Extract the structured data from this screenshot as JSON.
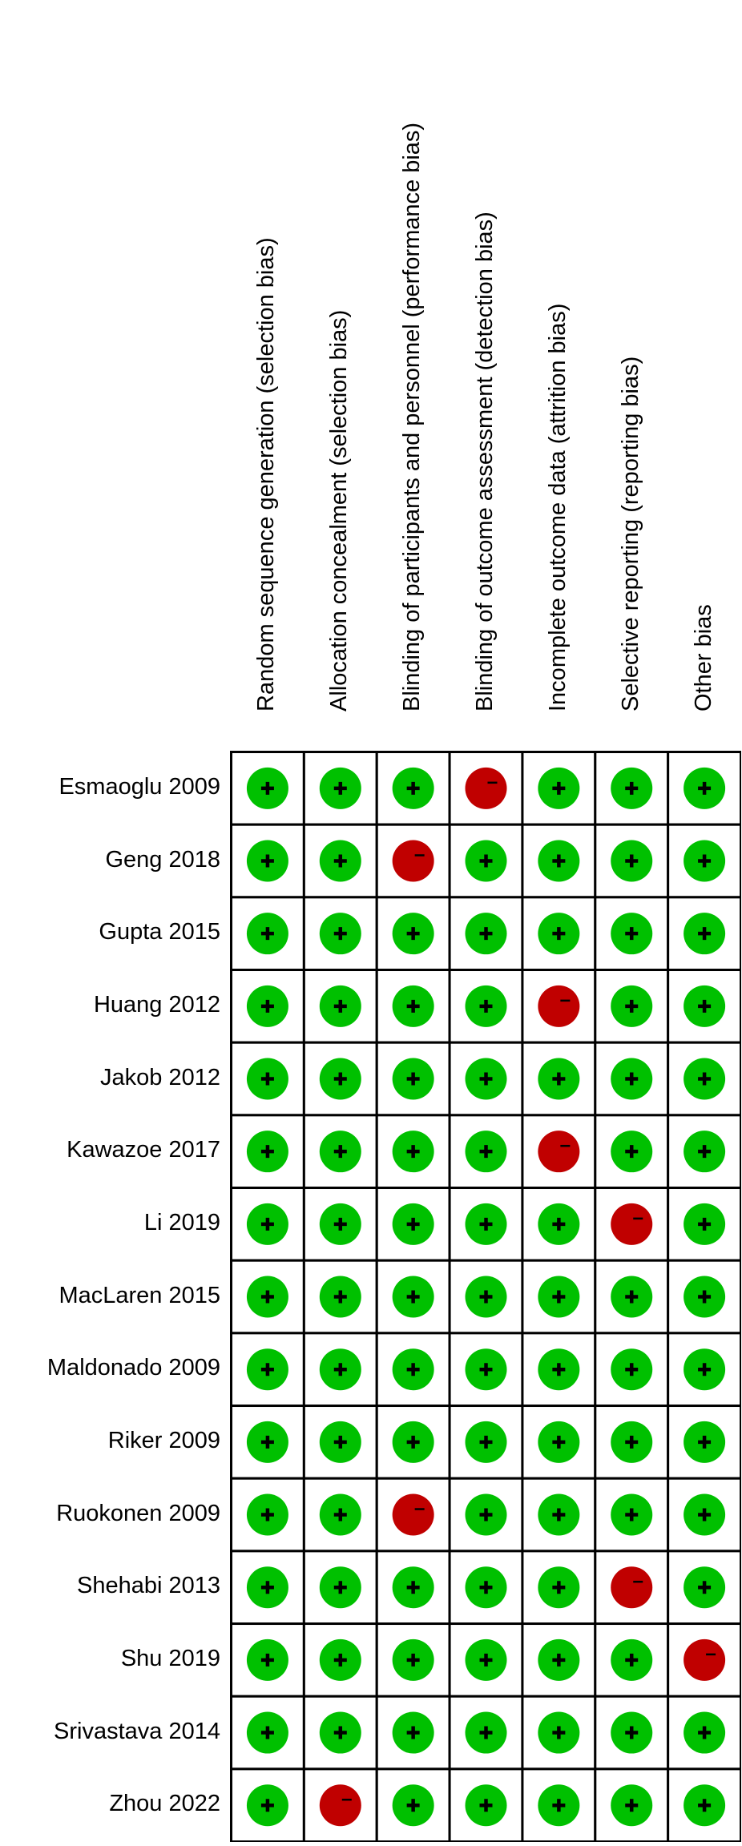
{
  "chart_data": {
    "type": "table",
    "title": "",
    "columns": [
      "Random sequence generation (selection bias)",
      "Allocation concealment (selection bias)",
      "Blinding of participants and personnel (performance bias)",
      "Blinding of outcome assessment (detection bias)",
      "Incomplete outcome data (attrition bias)",
      "Selective reporting (reporting bias)",
      "Other bias"
    ],
    "rows": [
      {
        "study": "Esmaoglu 2009",
        "ratings": [
          "+",
          "+",
          "+",
          "-",
          "+",
          "+",
          "+"
        ]
      },
      {
        "study": "Geng 2018",
        "ratings": [
          "+",
          "+",
          "-",
          "+",
          "+",
          "+",
          "+"
        ]
      },
      {
        "study": "Gupta 2015",
        "ratings": [
          "+",
          "+",
          "+",
          "+",
          "+",
          "+",
          "+"
        ]
      },
      {
        "study": "Huang 2012",
        "ratings": [
          "+",
          "+",
          "+",
          "+",
          "-",
          "+",
          "+"
        ]
      },
      {
        "study": "Jakob 2012",
        "ratings": [
          "+",
          "+",
          "+",
          "+",
          "+",
          "+",
          "+"
        ]
      },
      {
        "study": "Kawazoe 2017",
        "ratings": [
          "+",
          "+",
          "+",
          "+",
          "-",
          "+",
          "+"
        ]
      },
      {
        "study": "Li 2019",
        "ratings": [
          "+",
          "+",
          "+",
          "+",
          "+",
          "-",
          "+"
        ]
      },
      {
        "study": "MacLaren 2015",
        "ratings": [
          "+",
          "+",
          "+",
          "+",
          "+",
          "+",
          "+"
        ]
      },
      {
        "study": "Maldonado 2009",
        "ratings": [
          "+",
          "+",
          "+",
          "+",
          "+",
          "+",
          "+"
        ]
      },
      {
        "study": "Riker 2009",
        "ratings": [
          "+",
          "+",
          "+",
          "+",
          "+",
          "+",
          "+"
        ]
      },
      {
        "study": "Ruokonen 2009",
        "ratings": [
          "+",
          "+",
          "-",
          "+",
          "+",
          "+",
          "+"
        ]
      },
      {
        "study": "Shehabi 2013",
        "ratings": [
          "+",
          "+",
          "+",
          "+",
          "+",
          "-",
          "+"
        ]
      },
      {
        "study": "Shu 2019",
        "ratings": [
          "+",
          "+",
          "+",
          "+",
          "+",
          "+",
          "-"
        ]
      },
      {
        "study": "Srivastava 2014",
        "ratings": [
          "+",
          "+",
          "+",
          "+",
          "+",
          "+",
          "+"
        ]
      },
      {
        "study": "Zhou 2022",
        "ratings": [
          "+",
          "-",
          "+",
          "+",
          "+",
          "+",
          "+"
        ]
      }
    ],
    "legend_meaning": {
      "+": "low risk of bias",
      "-": "high risk of bias"
    },
    "colors": {
      "low": "#00c000",
      "high": "#c00000",
      "grid": "#000000"
    }
  }
}
